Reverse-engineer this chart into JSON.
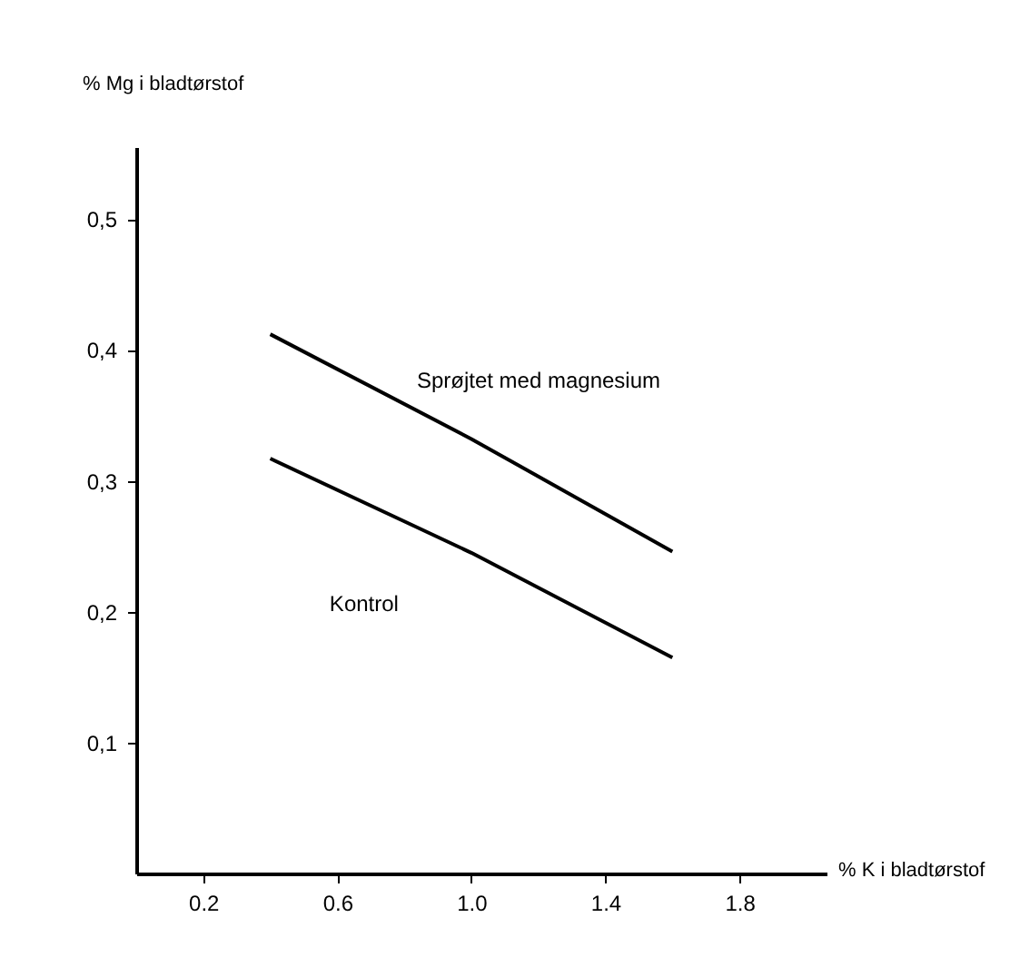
{
  "chart_data": {
    "type": "line",
    "xlabel": "% K i bladtørstof",
    "ylabel": "% Mg i bladtørstof",
    "x": [
      0.4,
      1.0,
      1.6
    ],
    "series": [
      {
        "name": "Sprøjtet med magnesium",
        "color": "#000000",
        "values": [
          0.412,
          0.332,
          0.246
        ]
      },
      {
        "name": "Kontrol",
        "color": "#000000",
        "values": [
          0.317,
          0.245,
          0.165
        ]
      }
    ],
    "xlim": [
      0,
      2.06
    ],
    "ylim": [
      0,
      0.555
    ],
    "xticks": [
      0.2,
      0.6,
      {
        "value": 1.0,
        "label": "1.0"
      },
      1.4,
      1.8
    ],
    "yticks": [
      {
        "value": 0.1,
        "label": "0,1"
      },
      {
        "value": 0.2,
        "label": "0,2"
      },
      {
        "value": 0.3,
        "label": "0,3"
      },
      {
        "value": 0.4,
        "label": "0,4"
      },
      {
        "value": 0.5,
        "label": "0,5"
      }
    ],
    "grid": false,
    "legend": false
  }
}
